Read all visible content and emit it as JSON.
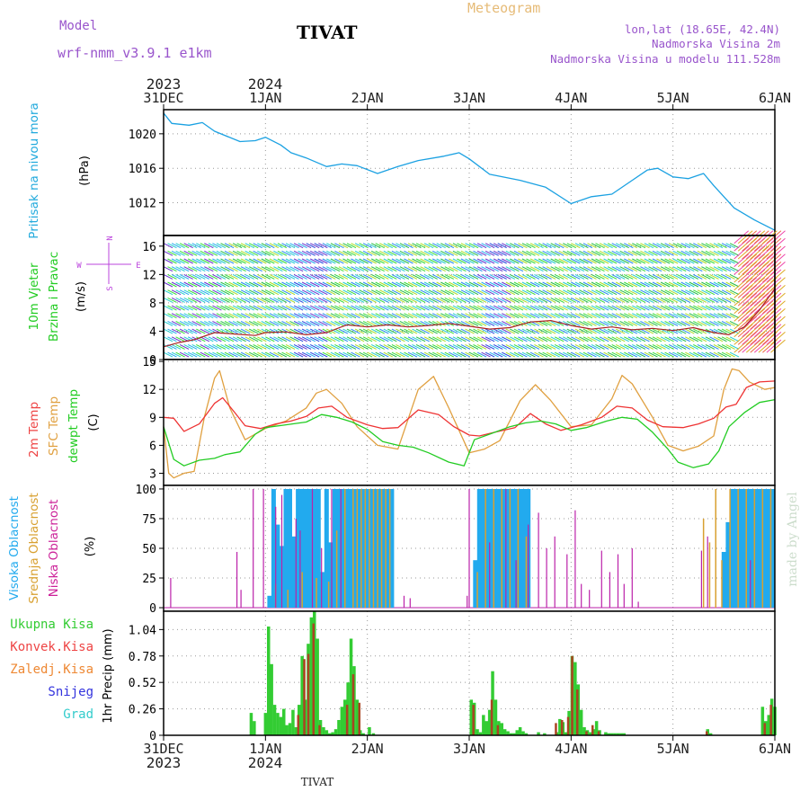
{
  "header": {
    "model_label": "Model",
    "model_name": "wrf-nmm_v3.9.1  e1km",
    "station": "TIVAT",
    "product": "Meteogram",
    "lonlat": "lon,lat (18.65E, 42.4N)",
    "altitude": "Nadmorska Visina 2m",
    "model_altitude": "Nadmorska Visina u modelu 111.528m",
    "footer_station": "TIVAT",
    "watermark": "made by Angel"
  },
  "colors": {
    "pressure": "#1ba1e2",
    "t2m": "#ee3333",
    "sfc": "#e0a040",
    "dew": "#22cc22",
    "high_cloud": "#22aaee",
    "mid_cloud": "#d8a030",
    "low_cloud": "#bb22aa",
    "total_precip": "#33cc33",
    "conv_precip": "#ee4444",
    "frz_precip": "#ee8833",
    "snow": "#3333dd",
    "hail": "#33cccc",
    "wind_speed": "#aa2222",
    "grid": "#999999"
  },
  "time_axis": {
    "top_years": [
      "2023",
      "2024"
    ],
    "bottom_years": [
      "2023",
      "2024"
    ],
    "day_labels": [
      "31DEC",
      "1JAN",
      "2JAN",
      "3JAN",
      "4JAN",
      "5JAN",
      "6JAN"
    ],
    "range_days": [
      0,
      6
    ]
  },
  "chart_data": [
    {
      "type": "line",
      "panel": "pressure",
      "title_left": "Pritisak na nivou mora",
      "ylabel": "(hPa)",
      "yticks": [
        "1020",
        "1016",
        "1012"
      ],
      "ylim": [
        1008.2,
        1022.8
      ],
      "series": [
        {
          "name": "Pritisak na nivou mora",
          "x": [
            0,
            0.08,
            0.25,
            0.38,
            0.5,
            0.75,
            0.9,
            1.0,
            1.15,
            1.25,
            1.4,
            1.6,
            1.75,
            1.9,
            2.1,
            2.3,
            2.5,
            2.75,
            2.9,
            3.0,
            3.2,
            3.5,
            3.75,
            4.0,
            4.2,
            4.4,
            4.6,
            4.75,
            4.85,
            5.0,
            5.15,
            5.3,
            5.4,
            5.6,
            5.8,
            6.0
          ],
          "y": [
            1022.4,
            1021.2,
            1021.0,
            1021.3,
            1020.3,
            1019.1,
            1019.2,
            1019.6,
            1018.7,
            1017.8,
            1017.2,
            1016.2,
            1016.5,
            1016.3,
            1015.4,
            1016.2,
            1016.9,
            1017.4,
            1017.8,
            1017.1,
            1015.3,
            1014.6,
            1013.8,
            1011.9,
            1012.7,
            1013.0,
            1014.6,
            1015.8,
            1016.0,
            1015.0,
            1014.8,
            1015.4,
            1014.0,
            1011.4,
            1010.0,
            1008.8
          ]
        }
      ]
    },
    {
      "type": "line",
      "panel": "wind",
      "title_left_1": "10m Vjetar",
      "title_left_2": "Brzina i Pravac",
      "ylabel": "(m/s)",
      "compass_n": "N",
      "compass_s": "S",
      "compass_w": "W",
      "compass_e": "E",
      "yticks": [
        "16",
        "12",
        "8",
        "4",
        "0"
      ],
      "ylim": [
        0,
        17.5
      ],
      "series": [
        {
          "name": "10m wind speed",
          "x": [
            0,
            0.15,
            0.3,
            0.5,
            0.7,
            0.9,
            1.0,
            1.2,
            1.4,
            1.6,
            1.8,
            2.0,
            2.2,
            2.4,
            2.6,
            2.8,
            3.0,
            3.2,
            3.4,
            3.6,
            3.8,
            4.0,
            4.2,
            4.4,
            4.6,
            4.8,
            5.0,
            5.2,
            5.4,
            5.55,
            5.7,
            5.85,
            6.0
          ],
          "y": [
            1.8,
            2.4,
            2.8,
            3.8,
            3.6,
            3.4,
            3.8,
            3.9,
            3.5,
            3.8,
            4.9,
            4.6,
            4.9,
            4.6,
            4.8,
            5.1,
            4.7,
            4.3,
            4.5,
            5.3,
            5.5,
            4.8,
            4.3,
            4.6,
            4.2,
            4.4,
            4.1,
            4.5,
            3.8,
            3.5,
            4.6,
            7.0,
            10.0
          ]
        }
      ]
    },
    {
      "type": "line",
      "panel": "temperature",
      "title_left_1": "2m Temp",
      "title_left_2": "SFC Temp",
      "title_left_3": "dewpt Temp",
      "ylabel": "(C)",
      "yticks": [
        "15",
        "12",
        "9",
        "6",
        "3"
      ],
      "ylim": [
        1.7,
        15.2
      ],
      "series": [
        {
          "name": "2m Temp",
          "x": [
            0,
            0.1,
            0.2,
            0.35,
            0.5,
            0.58,
            0.7,
            0.8,
            0.95,
            1.1,
            1.25,
            1.4,
            1.52,
            1.65,
            1.8,
            2.0,
            2.15,
            2.3,
            2.5,
            2.7,
            2.85,
            3.0,
            3.1,
            3.25,
            3.45,
            3.6,
            3.75,
            3.9,
            4.1,
            4.3,
            4.45,
            4.6,
            4.75,
            4.9,
            5.1,
            5.25,
            5.4,
            5.52,
            5.62,
            5.72,
            5.85,
            6.0
          ],
          "y": [
            9.0,
            8.9,
            7.5,
            8.3,
            10.5,
            11.1,
            9.5,
            8.1,
            7.8,
            8.3,
            8.6,
            9.1,
            10.0,
            10.2,
            9.0,
            8.2,
            7.8,
            7.9,
            9.8,
            9.3,
            8.0,
            7.1,
            7.0,
            7.4,
            7.9,
            9.4,
            8.3,
            7.6,
            8.2,
            9.0,
            10.2,
            10.0,
            8.7,
            8.0,
            7.9,
            8.3,
            8.9,
            10.1,
            10.4,
            12.2,
            12.8,
            12.9
          ]
        },
        {
          "name": "SFC Temp",
          "x": [
            0,
            0.05,
            0.1,
            0.2,
            0.3,
            0.4,
            0.5,
            0.55,
            0.65,
            0.8,
            1.0,
            1.2,
            1.4,
            1.5,
            1.6,
            1.75,
            1.9,
            2.1,
            2.3,
            2.5,
            2.65,
            2.8,
            3.0,
            3.15,
            3.3,
            3.5,
            3.65,
            3.8,
            4.0,
            4.2,
            4.4,
            4.5,
            4.6,
            4.8,
            4.95,
            5.1,
            5.25,
            5.4,
            5.5,
            5.58,
            5.65,
            5.75,
            5.9,
            6.0
          ],
          "y": [
            8.0,
            3.0,
            2.5,
            3.0,
            3.2,
            9.0,
            13.2,
            14.0,
            10.0,
            6.6,
            7.8,
            8.6,
            10.0,
            11.6,
            12.0,
            10.5,
            8.0,
            6.0,
            5.6,
            12.0,
            13.4,
            10.0,
            5.2,
            5.6,
            6.5,
            10.8,
            12.5,
            10.8,
            8.0,
            8.2,
            11.0,
            13.5,
            12.6,
            9.0,
            6.0,
            5.4,
            5.9,
            7.0,
            12.0,
            14.2,
            14.0,
            12.8,
            12.0,
            12.2
          ]
        },
        {
          "name": "dewpt Temp",
          "x": [
            0,
            0.1,
            0.2,
            0.35,
            0.5,
            0.6,
            0.75,
            0.9,
            1.0,
            1.2,
            1.4,
            1.55,
            1.7,
            1.85,
            2.0,
            2.15,
            2.3,
            2.45,
            2.6,
            2.8,
            2.95,
            3.05,
            3.2,
            3.4,
            3.55,
            3.7,
            3.85,
            4.0,
            4.15,
            4.35,
            4.5,
            4.65,
            4.8,
            4.95,
            5.05,
            5.2,
            5.35,
            5.45,
            5.55,
            5.7,
            5.85,
            6.0
          ],
          "y": [
            8.0,
            4.5,
            3.8,
            4.4,
            4.6,
            5.0,
            5.3,
            7.2,
            7.9,
            8.2,
            8.5,
            9.3,
            9.0,
            8.5,
            7.7,
            6.4,
            6.0,
            5.8,
            5.2,
            4.2,
            3.8,
            6.6,
            7.2,
            8.0,
            8.4,
            8.6,
            8.3,
            7.6,
            7.9,
            8.6,
            9.0,
            8.8,
            7.4,
            5.6,
            4.2,
            3.6,
            4.0,
            5.4,
            8.0,
            9.5,
            10.6,
            10.9
          ]
        }
      ]
    },
    {
      "type": "bar",
      "panel": "cloud",
      "title_left_1": "Visoka Oblacnost",
      "title_left_2": "Srednja Oblacnost",
      "title_left_3": "Niska Oblacnost",
      "ylabel": "(%)",
      "yticks": [
        "100",
        "75",
        "50",
        "25",
        "0"
      ],
      "ylim": [
        -3,
        103
      ],
      "series": [
        {
          "name": "Visoka Oblacnost",
          "x": [
            1.04,
            1.08,
            1.12,
            1.16,
            1.2,
            1.24,
            1.28,
            1.32,
            1.36,
            1.4,
            1.44,
            1.48,
            1.52,
            1.56,
            1.6,
            1.64,
            1.68,
            1.72,
            1.76,
            1.8,
            1.84,
            1.88,
            1.92,
            1.96,
            2.0,
            2.04,
            2.08,
            2.12,
            2.16,
            2.2,
            2.24,
            3.06,
            3.1,
            3.14,
            3.18,
            3.22,
            3.26,
            3.3,
            3.34,
            3.38,
            3.42,
            3.46,
            3.5,
            3.54,
            3.58,
            5.5,
            5.54,
            5.58,
            5.62,
            5.66,
            5.7,
            5.74,
            5.78,
            5.82,
            5.86,
            5.9,
            5.94,
            5.98
          ],
          "y": [
            10,
            100,
            70,
            52,
            100,
            100,
            60,
            100,
            100,
            100,
            100,
            100,
            100,
            30,
            100,
            55,
            100,
            100,
            100,
            100,
            100,
            100,
            100,
            100,
            100,
            100,
            100,
            100,
            100,
            100,
            100,
            40,
            100,
            100,
            100,
            100,
            100,
            100,
            100,
            100,
            100,
            100,
            100,
            100,
            100,
            47,
            72,
            100,
            100,
            100,
            100,
            100,
            100,
            100,
            100,
            100,
            100,
            100
          ]
        },
        {
          "name": "Srednja Oblacnost",
          "x": [
            1.1,
            1.22,
            1.36,
            1.5,
            1.62,
            1.7,
            1.78,
            1.86,
            1.9,
            1.94,
            1.98,
            2.02,
            2.06,
            2.1,
            2.14,
            2.18,
            2.22,
            3.08,
            3.16,
            3.24,
            3.32,
            3.4,
            3.48,
            3.56,
            5.3,
            5.36,
            5.42,
            5.48,
            5.56,
            5.64,
            5.72,
            5.8,
            5.88,
            5.96
          ],
          "y": [
            20,
            15,
            30,
            25,
            22,
            65,
            100,
            100,
            100,
            100,
            100,
            100,
            100,
            100,
            100,
            100,
            100,
            30,
            100,
            100,
            100,
            100,
            100,
            60,
            75,
            55,
            100,
            40,
            100,
            100,
            100,
            100,
            100,
            100
          ]
        },
        {
          "name": "Niska Oblacnost",
          "x": [
            0.07,
            0.72,
            0.76,
            0.88,
            0.98,
            1.1,
            1.16,
            1.3,
            1.34,
            1.46,
            1.55,
            1.65,
            1.74,
            2.36,
            2.42,
            2.98,
            3.0,
            3.2,
            3.36,
            3.46,
            3.58,
            3.68,
            3.76,
            3.84,
            3.96,
            4.04,
            4.1,
            4.18,
            4.3,
            4.38,
            4.46,
            4.52,
            4.6,
            4.66,
            5.28,
            5.34,
            5.76
          ],
          "y": [
            25,
            47,
            15,
            100,
            100,
            85,
            95,
            75,
            65,
            100,
            50,
            100,
            100,
            10,
            8,
            10,
            100,
            55,
            100,
            40,
            70,
            80,
            50,
            60,
            45,
            82,
            20,
            15,
            48,
            30,
            45,
            20,
            50,
            5,
            48,
            60,
            40
          ]
        }
      ]
    },
    {
      "type": "bar",
      "panel": "precip",
      "legend_total": "Ukupna Kisa",
      "legend_conv": "Konvek.Kisa",
      "legend_frz": "Zaledj.Kisa",
      "legend_snow": "Snijeg",
      "legend_hail": "Grad",
      "ylabel": "1hr Precip (mm)",
      "yticks": [
        "1.04",
        "0.78",
        "0.52",
        "0.26",
        "0"
      ],
      "ylim": [
        0,
        1.22
      ],
      "series": [
        {
          "name": "Ukupna Kisa",
          "x": [
            0.86,
            0.89,
            1.0,
            1.03,
            1.06,
            1.09,
            1.12,
            1.15,
            1.18,
            1.21,
            1.24,
            1.27,
            1.3,
            1.33,
            1.36,
            1.39,
            1.42,
            1.45,
            1.48,
            1.51,
            1.54,
            1.57,
            1.6,
            1.63,
            1.66,
            1.69,
            1.72,
            1.75,
            1.78,
            1.81,
            1.84,
            1.87,
            1.9,
            1.93,
            1.96,
            2.02,
            2.06,
            3.02,
            3.05,
            3.08,
            3.11,
            3.14,
            3.17,
            3.2,
            3.23,
            3.26,
            3.29,
            3.32,
            3.35,
            3.38,
            3.41,
            3.44,
            3.47,
            3.5,
            3.53,
            3.56,
            3.68,
            3.74,
            3.86,
            3.89,
            3.92,
            3.95,
            3.98,
            4.01,
            4.04,
            4.07,
            4.1,
            4.13,
            4.16,
            4.19,
            4.22,
            4.25,
            4.28,
            4.34,
            4.37,
            4.4,
            4.43,
            4.46,
            4.49,
            4.52,
            5.34,
            5.37,
            5.88,
            5.91,
            5.94,
            5.97,
            6.0
          ],
          "y": [
            0.22,
            0.14,
            0.22,
            1.07,
            0.7,
            0.3,
            0.22,
            0.18,
            0.26,
            0.1,
            0.12,
            0.25,
            0.08,
            0.3,
            0.78,
            0.35,
            0.9,
            1.16,
            1.22,
            0.95,
            0.15,
            0.08,
            0.05,
            0.02,
            0.03,
            0.06,
            0.15,
            0.28,
            0.35,
            0.52,
            0.95,
            0.68,
            0.35,
            0.05,
            0.02,
            0.08,
            0.02,
            0.35,
            0.32,
            0.06,
            0.03,
            0.2,
            0.14,
            0.25,
            0.63,
            0.35,
            0.14,
            0.12,
            0.06,
            0.04,
            0.02,
            0.02,
            0.05,
            0.08,
            0.04,
            0.02,
            0.03,
            0.02,
            0.03,
            0.16,
            0.13,
            0.03,
            0.24,
            0.78,
            0.72,
            0.5,
            0.25,
            0.08,
            0.05,
            0.03,
            0.06,
            0.14,
            0.05,
            0.03,
            0.02,
            0.02,
            0.02,
            0.02,
            0.02,
            0.02,
            0.06,
            0.02,
            0.28,
            0.14,
            0.2,
            0.36,
            0.28
          ]
        },
        {
          "name": "Konvek.Kisa",
          "x": [
            1.33,
            1.39,
            1.43,
            1.48,
            1.54,
            1.81,
            1.87,
            1.93,
            3.05,
            3.23,
            3.29,
            3.86,
            3.92,
            3.98,
            4.02,
            4.07,
            4.16,
            4.22,
            4.28,
            5.34,
            5.91,
            5.97
          ],
          "y": [
            0.2,
            0.75,
            0.8,
            1.1,
            0.1,
            0.3,
            0.6,
            0.32,
            0.3,
            0.35,
            0.1,
            0.12,
            0.15,
            0.18,
            0.78,
            0.45,
            0.04,
            0.1,
            0.04,
            0.04,
            0.12,
            0.3
          ]
        },
        {
          "name": "Zaledj.Kisa",
          "x": [],
          "y": []
        },
        {
          "name": "Snijeg",
          "x": [],
          "y": []
        },
        {
          "name": "Grad",
          "x": [],
          "y": []
        }
      ]
    }
  ]
}
